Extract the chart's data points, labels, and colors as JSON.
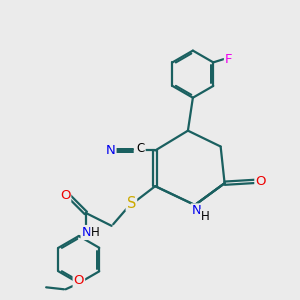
{
  "background_color": "#ebebeb",
  "atom_colors": {
    "N": "#0000ee",
    "O": "#ee0000",
    "S": "#ccaa00",
    "F": "#ee00ee",
    "C": "#000000"
  },
  "bond_color": "#1a6060",
  "bond_width": 1.6,
  "figsize": [
    3.0,
    3.0
  ],
  "dpi": 100
}
